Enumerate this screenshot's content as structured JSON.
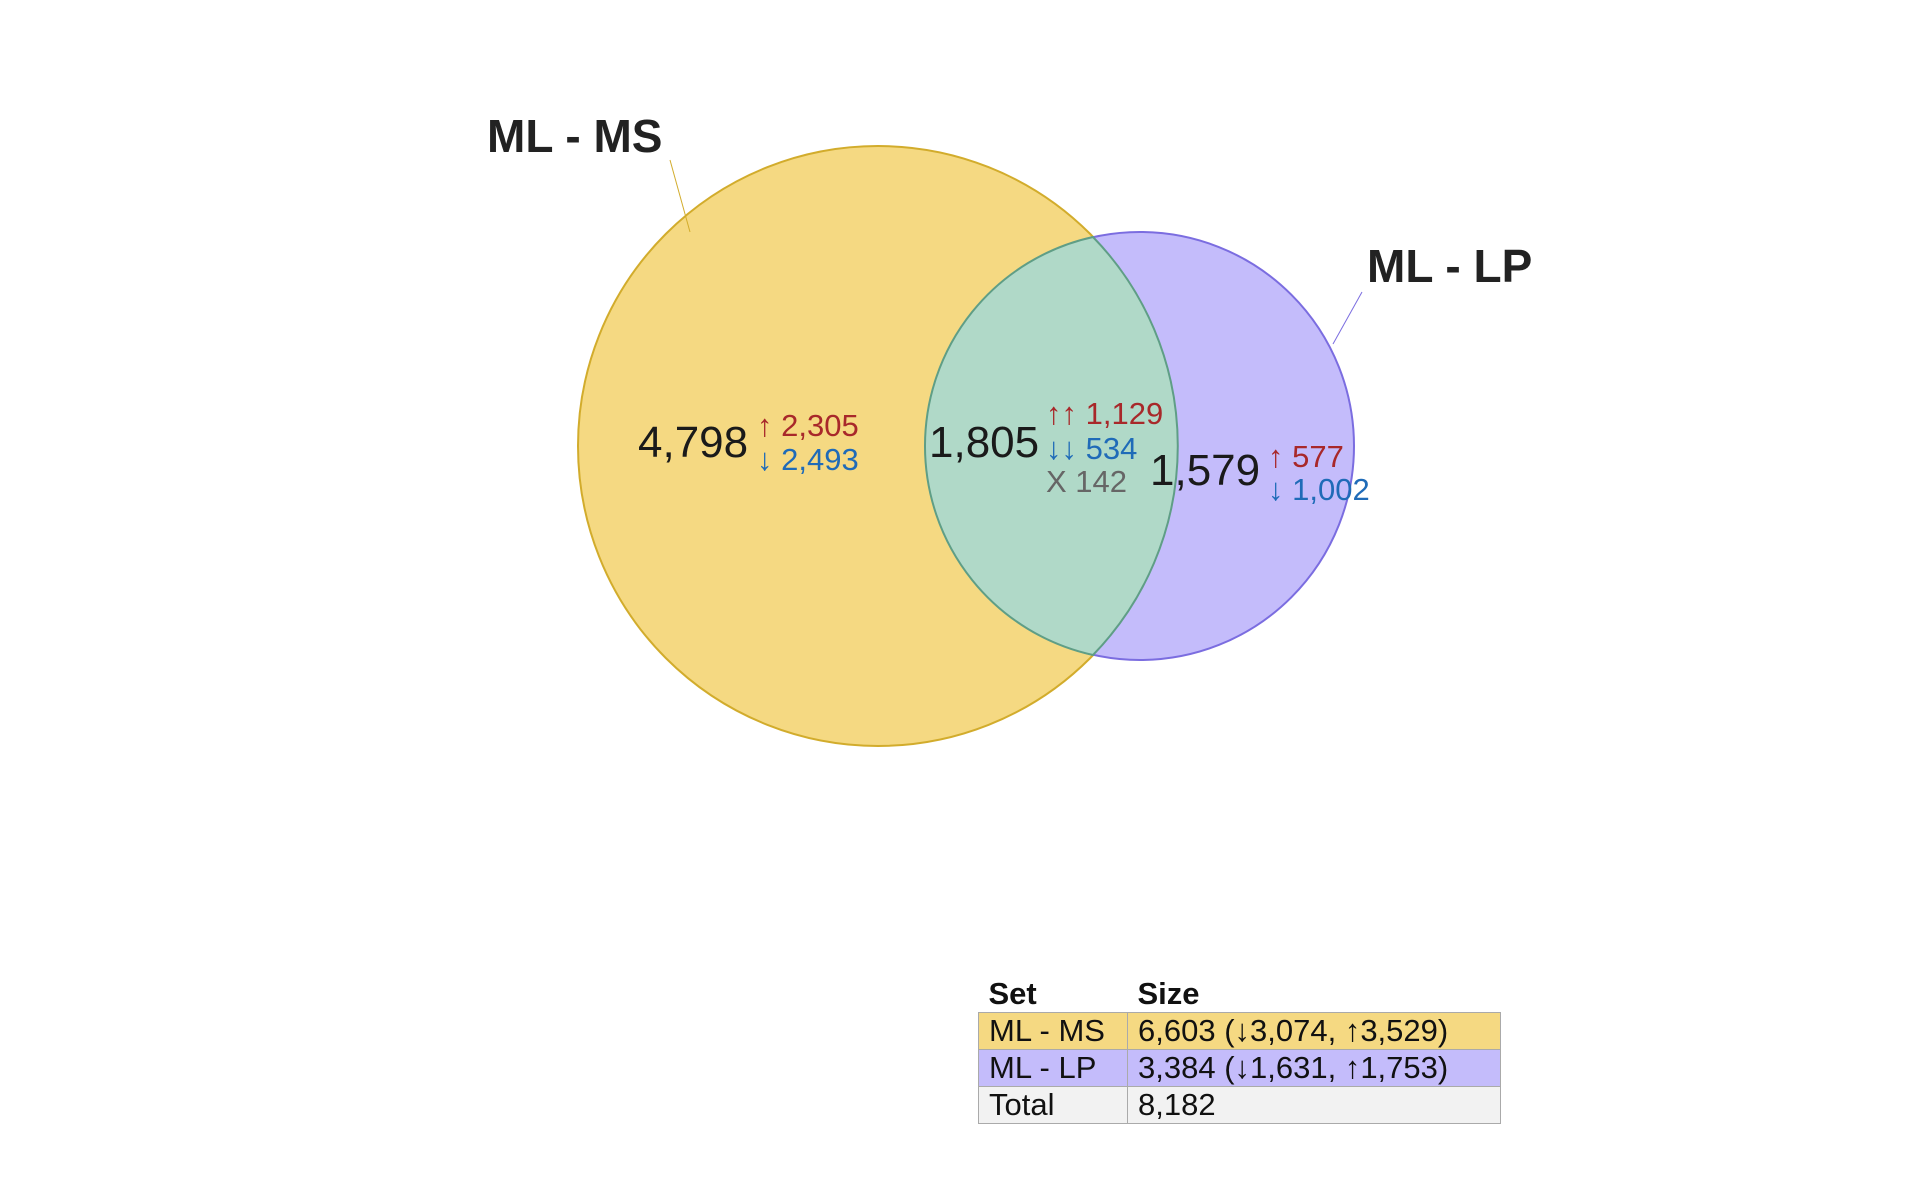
{
  "colors": {
    "set_a_fill": "#f5d982",
    "set_a_stroke": "#d2ac2c",
    "set_b_fill": "#c4bcfb",
    "set_b_stroke": "#7b6de0",
    "overlap_fill": "#b0d9c8",
    "overlap_stroke": "#5f9e86",
    "up": "#a8282a",
    "down": "#1f6bb8",
    "mixed": "#666666"
  },
  "venn": {
    "sets": [
      {
        "name": "ML - MS",
        "size": 6603
      },
      {
        "name": "ML - LP",
        "size": 3384
      }
    ],
    "regions": {
      "ms_only": {
        "total": "4,798",
        "up": "↑ 2,305",
        "down": "↓ 2,493"
      },
      "overlap": {
        "total": "1,805",
        "up": "↑↑ 1,129",
        "down": "↓↓ 534",
        "mixed": "X 142"
      },
      "lp_only": {
        "total": "1,579",
        "up": "↑ 577",
        "down": "↓ 1,002"
      }
    }
  },
  "table": {
    "headers": {
      "set": "Set",
      "size": "Size"
    },
    "rows": [
      {
        "set": "ML - MS",
        "size": "6,603 (↓3,074, ↑3,529)"
      },
      {
        "set": "ML - LP",
        "size": "3,384 (↓1,631, ↑1,753)"
      },
      {
        "set": "Total",
        "size": "8,182"
      }
    ]
  }
}
